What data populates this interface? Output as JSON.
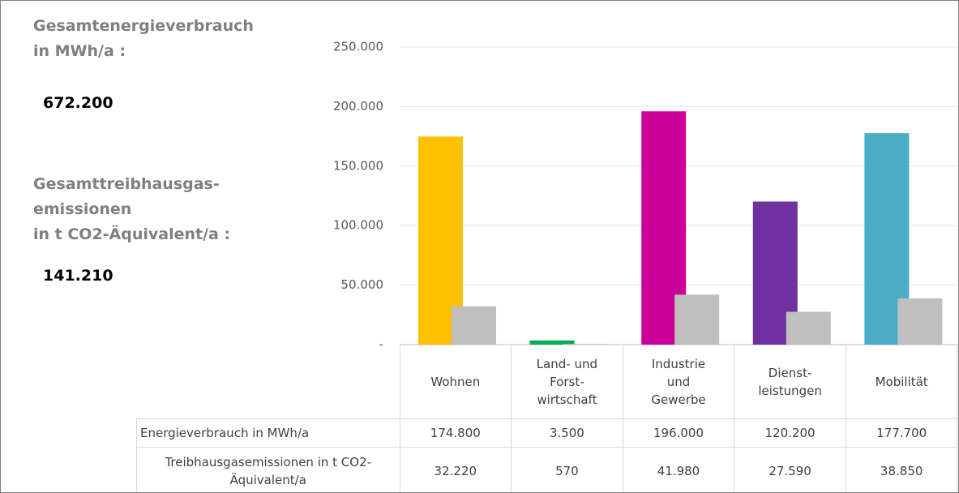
{
  "chart_data": {
    "type": "bar",
    "categories": [
      "Wohnen",
      "Land- und\nForst-\nwirtschaft",
      "Industrie\nund\nGewerbe",
      "Dienst-\nleistungen",
      "Mobilität"
    ],
    "series": [
      {
        "name": "Energieverbrauch in MWh/a",
        "colors": [
          "#ffc000",
          "#00b050",
          "#cc0099",
          "#7030a0",
          "#4bacc6"
        ],
        "values": [
          174800,
          3500,
          196000,
          120200,
          177700
        ],
        "value_labels": [
          "174.800",
          "3.500",
          "196.000",
          "120.200",
          "177.700"
        ]
      },
      {
        "name": "Treibhausgasemissionen in t CO2-Äquivalent/a",
        "color": "#bfbfbf",
        "values": [
          32220,
          570,
          41980,
          27590,
          38850
        ],
        "value_labels": [
          "32.220",
          "570",
          "41.980",
          "27.590",
          "38.850"
        ]
      }
    ],
    "ylim": [
      0,
      250000
    ],
    "yticks": [
      {
        "value": 0,
        "label": "-"
      },
      {
        "value": 50000,
        "label": "50.000"
      },
      {
        "value": 100000,
        "label": "100.000"
      },
      {
        "value": 150000,
        "label": "150.000"
      },
      {
        "value": 200000,
        "label": "200.000"
      },
      {
        "value": 250000,
        "label": "250.000"
      }
    ],
    "grid": true
  },
  "annotations": [
    {
      "label": "Gesamtenergieverbrauch\nin MWh/a :",
      "value": "672.200"
    },
    {
      "label": "Gesamttreibhausgas-\nemissionen\nin t CO2-Äquivalent/a :",
      "value": "141.210"
    }
  ]
}
